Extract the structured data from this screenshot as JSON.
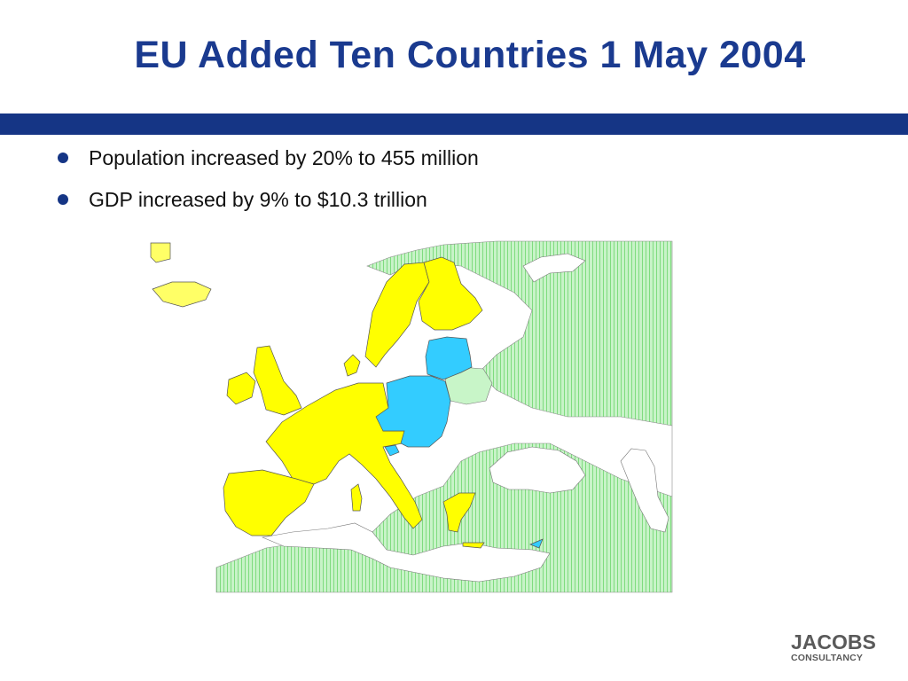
{
  "slide": {
    "title": "EU Added Ten Countries 1 May 2004",
    "bullets": [
      "Population increased by 20% to 455 million",
      "GDP increased by 9% to $10.3 trillion"
    ]
  },
  "map": {
    "legend_colors": {
      "existing_members": "#ffff00",
      "new_members_2004": "#33ccff",
      "non_members": "#bff2bf",
      "non_members_hatch": "#7fdc7f",
      "sea": "#ffffff",
      "borders": "#6f6f6f"
    }
  },
  "logo": {
    "name": "JACOBS",
    "tagline": "CONSULTANCY"
  }
}
